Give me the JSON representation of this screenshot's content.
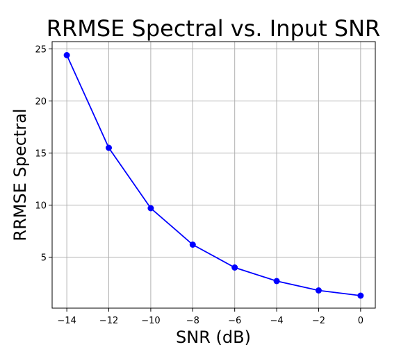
{
  "chart_data": {
    "type": "line",
    "title": "RRMSE Spectral vs. Input SNR",
    "xlabel": "SNR (dB)",
    "ylabel": "RRMSE Spectral",
    "xlim": [
      -14.7,
      0.7
    ],
    "ylim": [
      0.1,
      25.7
    ],
    "xticks": [
      -14,
      -12,
      -10,
      -8,
      -6,
      -4,
      -2,
      0
    ],
    "xtick_labels": [
      "−14",
      "−12",
      "−10",
      "−8",
      "−6",
      "−4",
      "−2",
      "0"
    ],
    "yticks": [
      5,
      10,
      15,
      20,
      25
    ],
    "ytick_labels": [
      "5",
      "10",
      "15",
      "20",
      "25"
    ],
    "grid": true,
    "series": [
      {
        "color": "#0000ff",
        "marker": "circle",
        "x": [
          -14,
          -12,
          -10,
          -8,
          -6,
          -4,
          -2,
          0
        ],
        "y": [
          24.4,
          15.5,
          9.7,
          6.2,
          4.0,
          2.7,
          1.8,
          1.3
        ]
      }
    ]
  }
}
